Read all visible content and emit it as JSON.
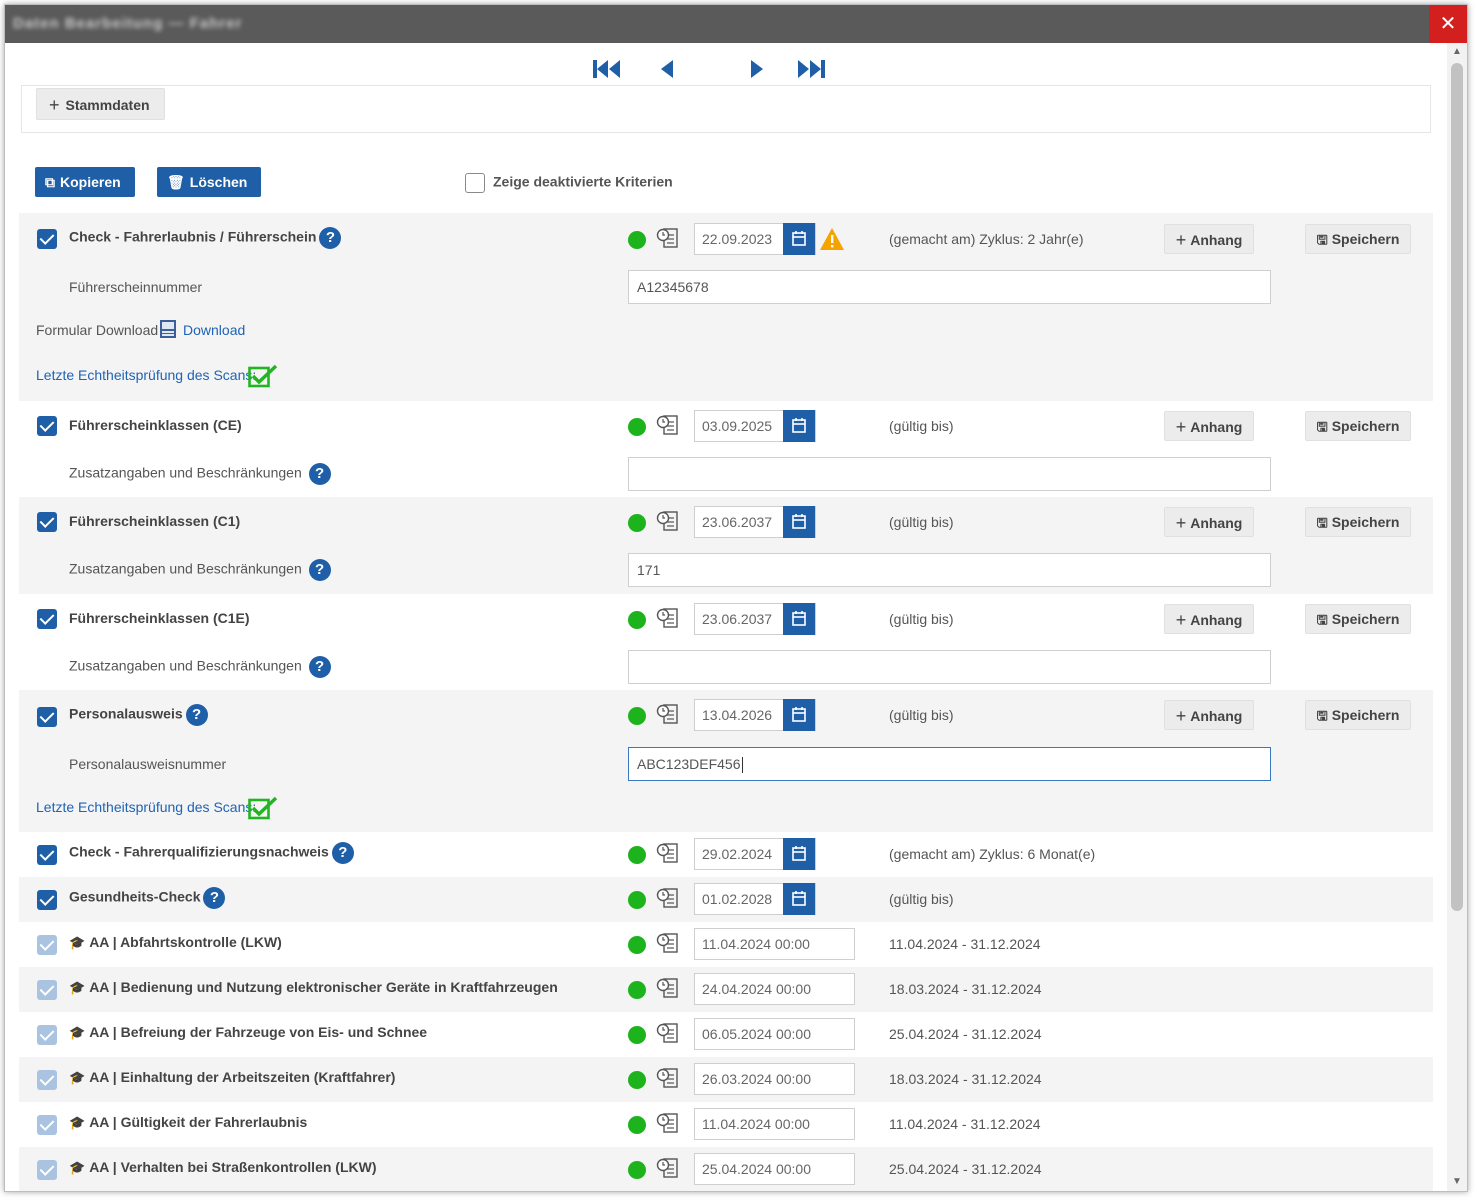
{
  "window": {
    "title": "Daten Bearbeitung — Fahrer",
    "close_glyph": "✕"
  },
  "stammdaten": {
    "label": "Stammdaten"
  },
  "toolbar": {
    "copy_label": "Kopieren",
    "delete_label": "Löschen",
    "show_deactivated_label": "Zeige deaktivierte Kriterien"
  },
  "common": {
    "anhang_label": "Anhang",
    "speichern_label": "Speichern",
    "zusatz_label": "Zusatzangaben und Beschränkungen",
    "echtheit_label": "Letzte Echtheitsprüfung des Scans:"
  },
  "criteria": [
    {
      "label": "Check - Fahrerlaubnis / Führerschein",
      "date": "22.09.2023",
      "info": "(gemacht am) Zyklus: 2 Jahr(e)",
      "warning": true,
      "field_label": "Führerscheinnummer",
      "field_value": "A12345678",
      "download_prefix": "Formular Download",
      "download_link": "Download"
    },
    {
      "label": "Führerscheinklassen (CE)",
      "date": "03.09.2025",
      "info": "(gültig bis)",
      "field_value": ""
    },
    {
      "label": "Führerscheinklassen (C1)",
      "date": "23.06.2037",
      "info": "(gültig bis)",
      "field_value": "171"
    },
    {
      "label": "Führerscheinklassen (C1E)",
      "date": "23.06.2037",
      "info": "(gültig bis)",
      "field_value": ""
    },
    {
      "label": "Personalausweis",
      "date": "13.04.2026",
      "info": "(gültig bis)",
      "field_label": "Personalausweisnummer",
      "field_value": "ABC123DEF456"
    },
    {
      "label": "Check - Fahrerqualifizierungsnachweis",
      "date": "29.02.2024",
      "info": "(gemacht am) Zyklus: 6 Monat(e)"
    },
    {
      "label": "Gesundheits-Check",
      "date": "01.02.2028",
      "info": "(gültig bis)"
    }
  ],
  "trainings": [
    {
      "label": "AA | Abfahrtskontrolle (LKW)",
      "date": "11.04.2024 00:00",
      "range": "11.04.2024 - 31.12.2024"
    },
    {
      "label": "AA | Bedienung und Nutzung elektronischer Geräte in Kraftfahrzeugen",
      "date": "24.04.2024 00:00",
      "range": "18.03.2024 - 31.12.2024"
    },
    {
      "label": "AA | Befreiung der Fahrzeuge von Eis- und Schnee",
      "date": "06.05.2024 00:00",
      "range": "25.04.2024 - 31.12.2024"
    },
    {
      "label": "AA | Einhaltung der Arbeitszeiten (Kraftfahrer)",
      "date": "26.03.2024 00:00",
      "range": "18.03.2024 - 31.12.2024"
    },
    {
      "label": "AA | Gültigkeit der Fahrerlaubnis",
      "date": "11.04.2024 00:00",
      "range": "11.04.2024 - 31.12.2024"
    },
    {
      "label": "AA | Verhalten bei Straßenkontrollen (LKW)",
      "date": "25.04.2024 00:00",
      "range": "25.04.2024 - 31.12.2024"
    }
  ],
  "colors": {
    "primary": "#1f5fa8",
    "status_green": "#1db31d",
    "close_red": "#d41f1f",
    "warning": "#f5a300",
    "scan_ok": "#22b522"
  }
}
